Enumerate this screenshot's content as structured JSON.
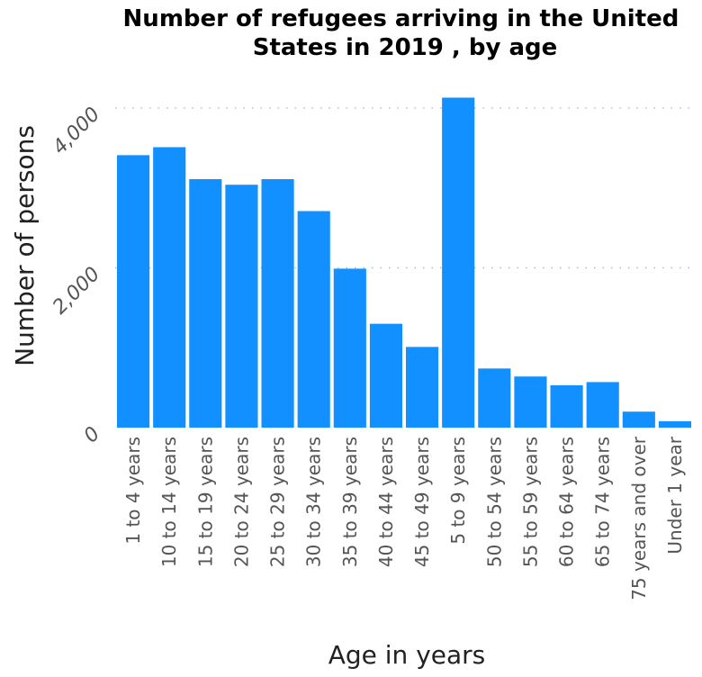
{
  "chart_data": {
    "type": "bar",
    "title": "Number of refugees arriving in the United States in 2019 , by age",
    "title_lines": [
      "Number of refugees arriving in the United",
      "States in 2019 , by age"
    ],
    "xlabel": "Age in years",
    "ylabel": "Number of persons",
    "categories": [
      "1 to 4 years",
      "10 to 14 years",
      "15 to 19 years",
      "20 to 24 years",
      "25 to 29 years",
      "30 to 34 years",
      "35 to 39 years",
      "40 to 44 years",
      "45 to 49 years",
      "5 to 9 years",
      "50 to 54 years",
      "55 to 59 years",
      "60 to 64 years",
      "65 to 74 years",
      "75 years and over",
      "Under 1 year"
    ],
    "values": [
      3410,
      3510,
      3110,
      3040,
      3110,
      2710,
      1990,
      1300,
      1010,
      4130,
      740,
      640,
      530,
      570,
      200,
      80
    ],
    "ylim": [
      0,
      4000
    ],
    "yticks": [
      0,
      2000,
      4000
    ],
    "ytick_labels": [
      "0",
      "2,000",
      "4,000"
    ],
    "grid": true,
    "bar_color": "#1390ff",
    "grid_color": "#bbbbbb"
  }
}
